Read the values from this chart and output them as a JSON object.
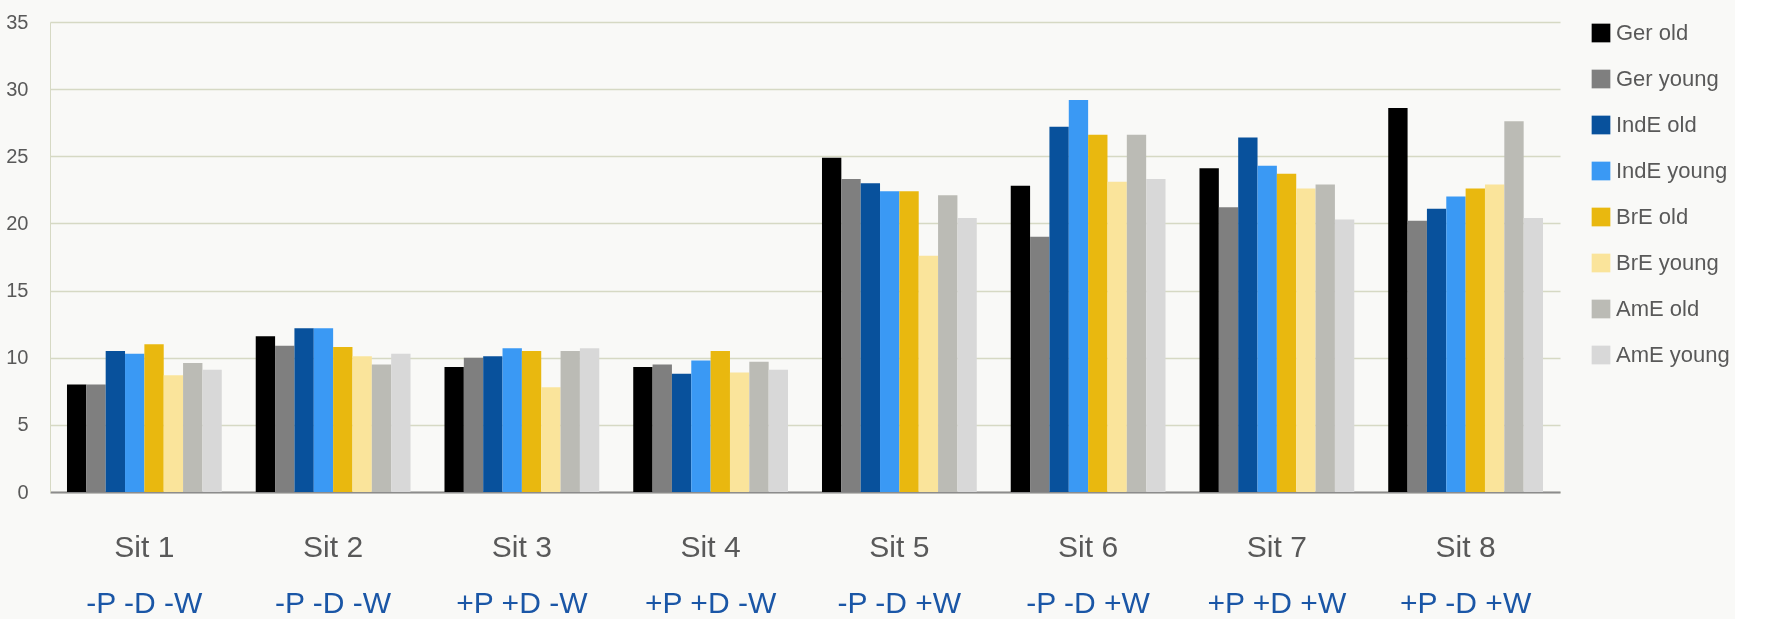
{
  "chart_data": {
    "type": "bar",
    "categories": [
      "Sit 1",
      "Sit 2",
      "Sit 3",
      "Sit 4",
      "Sit 5",
      "Sit 6",
      "Sit 7",
      "Sit 8"
    ],
    "series": [
      {
        "name": "Ger old",
        "color": "#000000",
        "values": [
          8.0,
          11.6,
          9.3,
          9.3,
          24.9,
          22.8,
          24.1,
          28.6
        ]
      },
      {
        "name": "Ger young",
        "color": "#7f7f7f",
        "values": [
          8.0,
          10.9,
          10.0,
          9.5,
          23.3,
          19.0,
          21.2,
          20.2
        ]
      },
      {
        "name": "IndE old",
        "color": "#08519c",
        "values": [
          10.5,
          12.2,
          10.1,
          8.8,
          23.0,
          27.2,
          26.4,
          21.1
        ]
      },
      {
        "name": "IndE young",
        "color": "#3a99f4",
        "values": [
          10.3,
          12.2,
          10.7,
          9.8,
          22.4,
          29.2,
          24.3,
          22.0
        ]
      },
      {
        "name": "BrE old",
        "color": "#e9b80f",
        "values": [
          11.0,
          10.8,
          10.5,
          10.5,
          22.4,
          26.6,
          23.7,
          22.6
        ]
      },
      {
        "name": "BrE young",
        "color": "#fae49b",
        "values": [
          8.7,
          10.1,
          7.8,
          8.9,
          17.6,
          23.1,
          22.6,
          22.9
        ]
      },
      {
        "name": "AmE old",
        "color": "#bbbbb5",
        "values": [
          9.6,
          9.5,
          10.5,
          9.7,
          22.1,
          26.6,
          22.9,
          27.6
        ]
      },
      {
        "name": "AmE young",
        "color": "#d8d8d8",
        "values": [
          9.1,
          10.3,
          10.7,
          9.1,
          20.4,
          23.3,
          20.3,
          20.4
        ]
      }
    ],
    "ylim": [
      0,
      35
    ],
    "yticks": [
      0,
      5,
      10,
      15,
      20,
      25,
      30,
      35
    ],
    "grid": "y",
    "legend": "right",
    "annotations": [
      "-P -D -W",
      "-P -D -W",
      "+P +D -W",
      "+P +D -W",
      "-P -D +W",
      "-P -D +W",
      "+P +D +W",
      "+P -D +W"
    ]
  }
}
